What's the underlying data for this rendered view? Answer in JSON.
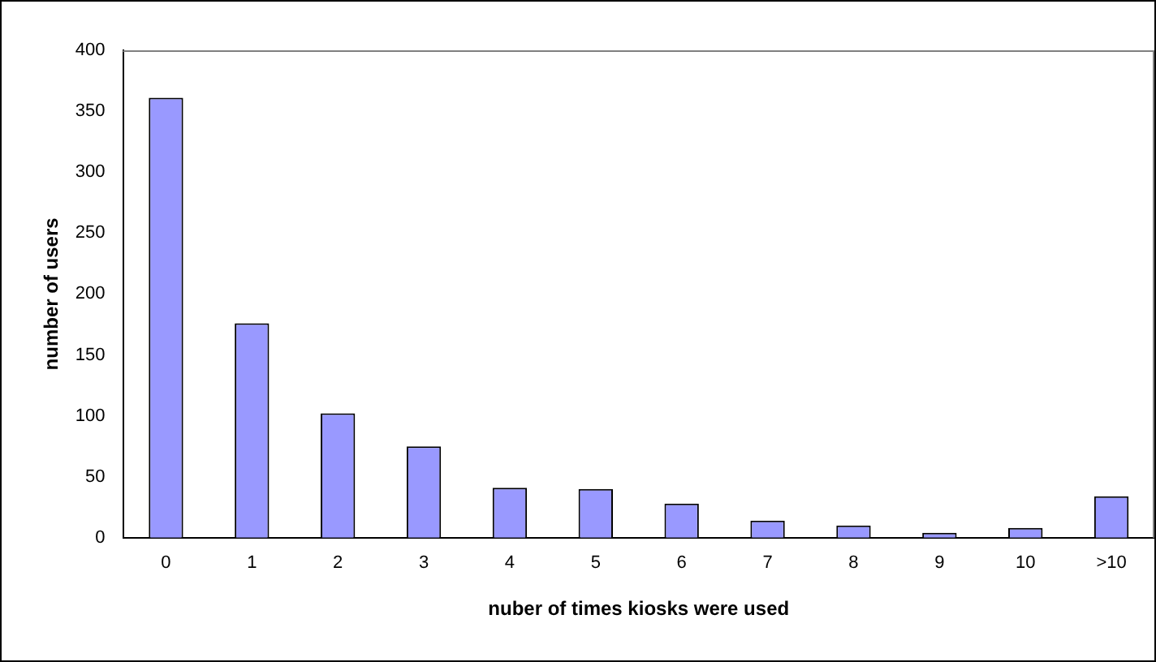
{
  "chart_data": {
    "type": "bar",
    "xlabel": "nuber of times kiosks were used",
    "ylabel": "number of users",
    "categories": [
      "0",
      "1",
      "2",
      "3",
      "4",
      "5",
      "6",
      "7",
      "8",
      "9",
      "10",
      ">10"
    ],
    "values": [
      361,
      176,
      102,
      75,
      41,
      40,
      28,
      14,
      10,
      4,
      8,
      34
    ],
    "color": "#9999ff",
    "ylim": [
      0,
      400
    ],
    "yticks": [
      0,
      50,
      100,
      150,
      200,
      250,
      300,
      350,
      400
    ],
    "grid": false,
    "legend": false
  }
}
